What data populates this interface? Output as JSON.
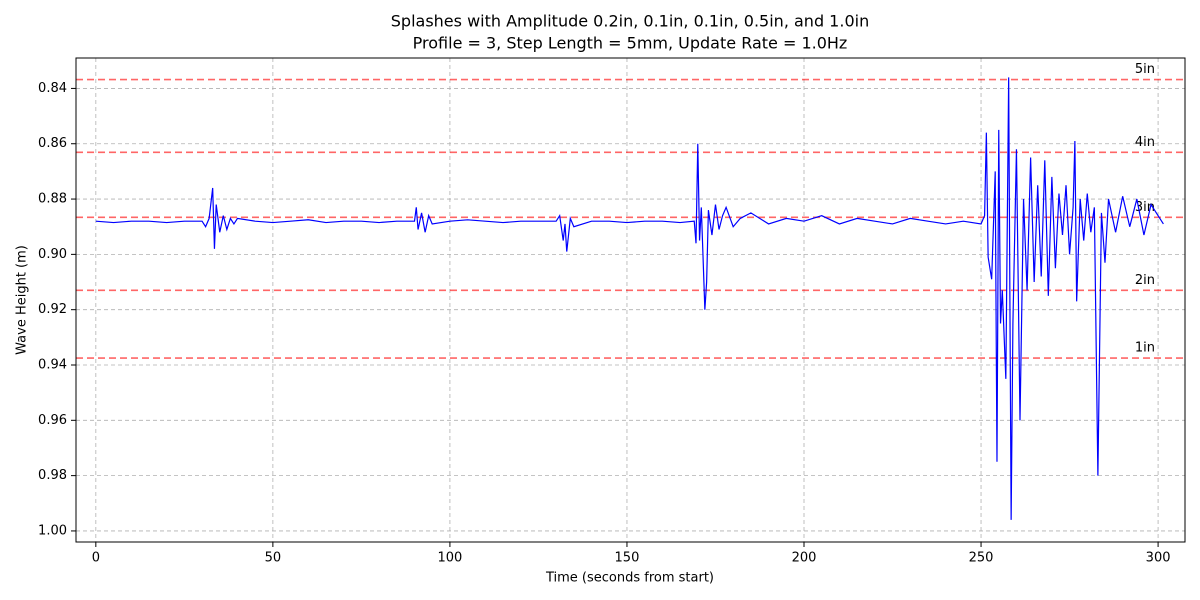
{
  "chart_data": {
    "type": "line",
    "title": "Splashes with Amplitude 0.2in, 0.1in, 0.1in, 0.5in, and 1.0in",
    "subtitle": "Profile = 3, Step Length = 5mm, Update Rate = 1.0Hz",
    "x_label": "Time (seconds from start)",
    "y_label": "Wave Height (m)",
    "color": "#0000ff",
    "x": [
      0,
      5,
      10,
      15,
      20,
      25,
      30,
      31,
      32,
      33,
      33.5,
      34,
      35,
      36,
      37,
      38,
      39,
      40,
      45,
      50,
      55,
      60,
      65,
      70,
      75,
      80,
      85,
      90,
      90.5,
      91,
      92,
      93,
      94,
      95,
      100,
      105,
      110,
      115,
      120,
      125,
      130,
      131,
      132,
      132.5,
      133,
      134,
      135,
      140,
      145,
      150,
      155,
      160,
      165,
      169,
      169.5,
      170,
      170.5,
      171,
      172,
      172.5,
      173,
      174,
      175,
      176,
      177,
      178,
      180,
      182,
      185,
      190,
      195,
      200,
      205,
      210,
      215,
      220,
      225,
      230,
      235,
      240,
      245,
      250,
      251,
      251.5,
      252,
      253,
      254,
      254.5,
      255,
      255.5,
      256,
      257,
      257.8,
      258.5,
      259,
      260,
      261,
      262,
      263,
      264,
      265,
      266,
      267,
      268,
      269,
      270,
      271,
      272,
      273,
      274,
      275,
      276,
      276.5,
      277,
      278,
      279,
      280,
      281,
      282,
      283,
      284,
      285,
      286,
      288,
      290,
      292,
      294,
      296,
      298,
      300,
      301.5
    ],
    "values": [
      0.888,
      0.8885,
      0.888,
      0.888,
      0.8885,
      0.888,
      0.888,
      0.89,
      0.887,
      0.876,
      0.898,
      0.882,
      0.892,
      0.886,
      0.891,
      0.887,
      0.889,
      0.887,
      0.888,
      0.8885,
      0.888,
      0.8875,
      0.8885,
      0.888,
      0.888,
      0.8885,
      0.888,
      0.888,
      0.883,
      0.891,
      0.885,
      0.892,
      0.886,
      0.889,
      0.888,
      0.8875,
      0.888,
      0.8885,
      0.888,
      0.888,
      0.888,
      0.886,
      0.895,
      0.889,
      0.899,
      0.887,
      0.89,
      0.888,
      0.888,
      0.8885,
      0.888,
      0.888,
      0.8885,
      0.888,
      0.896,
      0.86,
      0.895,
      0.883,
      0.92,
      0.91,
      0.884,
      0.893,
      0.882,
      0.891,
      0.886,
      0.883,
      0.89,
      0.887,
      0.885,
      0.889,
      0.887,
      0.888,
      0.886,
      0.889,
      0.887,
      0.888,
      0.889,
      0.887,
      0.888,
      0.889,
      0.888,
      0.889,
      0.886,
      0.856,
      0.901,
      0.909,
      0.87,
      0.975,
      0.855,
      0.925,
      0.913,
      0.945,
      0.836,
      0.996,
      0.925,
      0.862,
      0.96,
      0.88,
      0.913,
      0.865,
      0.91,
      0.875,
      0.908,
      0.866,
      0.915,
      0.872,
      0.905,
      0.878,
      0.893,
      0.875,
      0.9,
      0.883,
      0.859,
      0.917,
      0.88,
      0.895,
      0.878,
      0.892,
      0.883,
      0.98,
      0.885,
      0.903,
      0.88,
      0.892,
      0.879,
      0.89,
      0.88,
      0.893,
      0.882,
      0.886,
      0.889
    ],
    "xlim": [
      -5.6,
      307.6
    ],
    "xticks": [
      0,
      50,
      100,
      150,
      200,
      250,
      300
    ],
    "ylim": [
      1.004,
      0.829
    ],
    "yticks": [
      0.84,
      0.86,
      0.88,
      {
        "value": 0.9,
        "label": "0.90"
      },
      0.92,
      0.94,
      0.96,
      0.98,
      {
        "value": 1.0,
        "label": "1.00"
      }
    ],
    "grid": true,
    "reference_lines": [
      {
        "value": 0.8368,
        "label": "5in"
      },
      {
        "value": 0.8631,
        "label": "4in"
      },
      {
        "value": 0.8866,
        "label": "3in"
      },
      {
        "value": 0.913,
        "label": "2in"
      },
      {
        "value": 0.9375,
        "label": "1in"
      }
    ],
    "reference_color": "#ff0000"
  }
}
